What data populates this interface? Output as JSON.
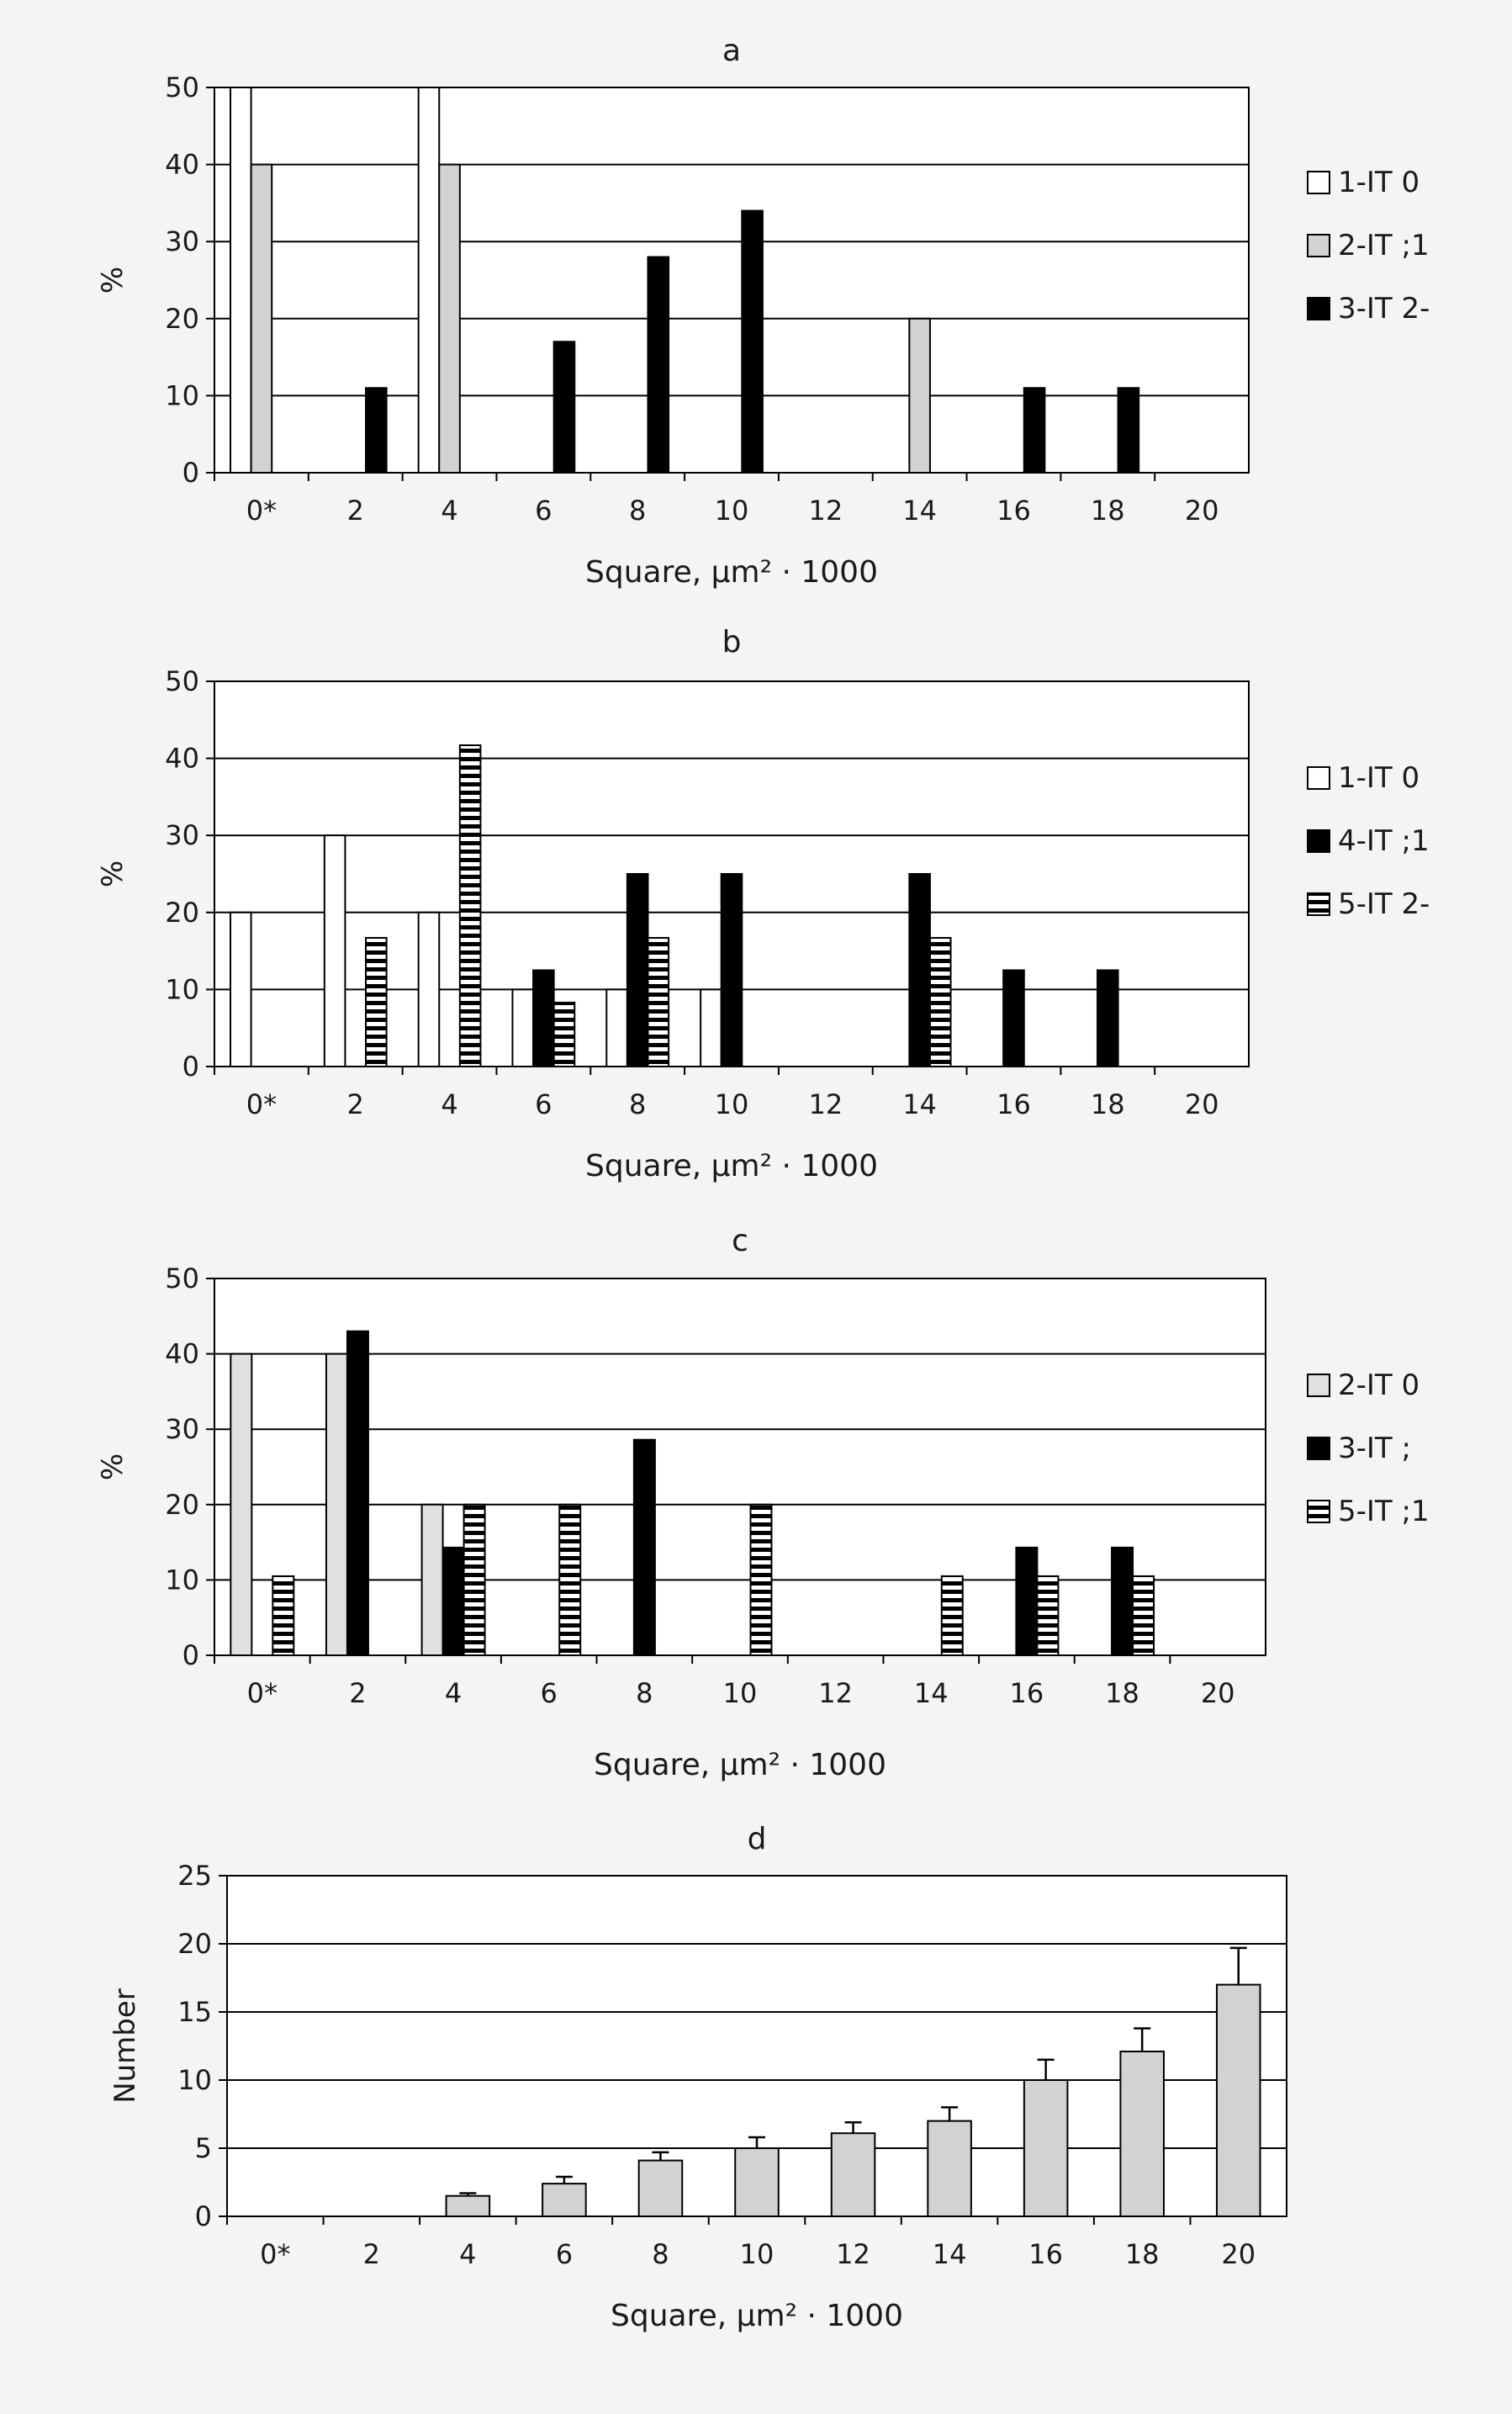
{
  "chart_data": [
    {
      "panel": "a",
      "type": "bar",
      "title": "a",
      "xlabel": "Square, µm² · 1000",
      "ylabel": "%",
      "ylim": [
        0,
        50
      ],
      "yticks": [
        0,
        10,
        20,
        30,
        40,
        50
      ],
      "categories": [
        "0*",
        "2",
        "4",
        "6",
        "8",
        "10",
        "12",
        "14",
        "16",
        "18",
        "20"
      ],
      "series": [
        {
          "name": "1-IT 0",
          "style": "white",
          "values": [
            50,
            0,
            50,
            0,
            0,
            0,
            0,
            0,
            0,
            0,
            0
          ]
        },
        {
          "name": "2-IT ;1",
          "style": "gray",
          "values": [
            40,
            0,
            40,
            0,
            0,
            0,
            0,
            20,
            0,
            0,
            0
          ]
        },
        {
          "name": "3-IT 2-",
          "style": "black",
          "values": [
            0,
            11,
            0,
            17,
            28,
            34,
            0,
            0,
            11,
            11,
            0
          ]
        }
      ],
      "legend_position": "right",
      "grid": true
    },
    {
      "panel": "b",
      "type": "bar",
      "title": "b",
      "xlabel": "Square, µm² · 1000",
      "ylabel": "%",
      "ylim": [
        0,
        50
      ],
      "yticks": [
        0,
        10,
        20,
        30,
        40,
        50
      ],
      "categories": [
        "0*",
        "2",
        "4",
        "6",
        "8",
        "10",
        "12",
        "14",
        "16",
        "18",
        "20"
      ],
      "series": [
        {
          "name": "1-IT 0",
          "style": "white",
          "values": [
            20,
            30,
            20,
            10,
            10,
            10,
            0,
            0,
            0,
            0,
            0
          ]
        },
        {
          "name": "4-IT ;1",
          "style": "black",
          "values": [
            0,
            0,
            0,
            12.5,
            25,
            25,
            0,
            25,
            12.5,
            12.5,
            0
          ]
        },
        {
          "name": "5-IT 2-",
          "style": "striped",
          "values": [
            0,
            16.7,
            41.7,
            8.3,
            16.7,
            0,
            0,
            16.7,
            0,
            0,
            0
          ]
        }
      ],
      "legend_position": "right",
      "grid": true
    },
    {
      "panel": "c",
      "type": "bar",
      "title": "c",
      "xlabel": "Square, µm² · 1000",
      "ylabel": "%",
      "ylim": [
        0,
        50
      ],
      "yticks": [
        0,
        10,
        20,
        30,
        40,
        50
      ],
      "categories": [
        "0*",
        "2",
        "4",
        "6",
        "8",
        "10",
        "12",
        "14",
        "16",
        "18",
        "20"
      ],
      "series": [
        {
          "name": "2-IT 0",
          "style": "lightgray",
          "values": [
            40,
            40,
            20,
            0,
            0,
            0,
            0,
            0,
            0,
            0,
            0
          ]
        },
        {
          "name": "3-IT ;",
          "style": "black",
          "values": [
            0,
            43,
            14.3,
            0,
            28.6,
            0,
            0,
            0,
            14.3,
            14.3,
            0
          ]
        },
        {
          "name": "5-IT ;1",
          "style": "striped",
          "values": [
            10.5,
            0,
            20,
            20,
            0,
            20,
            0,
            10.5,
            10.5,
            10.5,
            0
          ]
        }
      ],
      "legend_position": "right",
      "grid": true
    },
    {
      "panel": "d",
      "type": "bar",
      "title": "d",
      "xlabel": "Square, µm² · 1000",
      "ylabel": "Number",
      "ylim": [
        0,
        25
      ],
      "yticks": [
        0,
        5,
        10,
        15,
        20,
        25
      ],
      "categories": [
        "0*",
        "2",
        "4",
        "6",
        "8",
        "10",
        "12",
        "14",
        "16",
        "18",
        "20"
      ],
      "series": [
        {
          "style": "gray",
          "values": [
            0,
            0,
            1.5,
            2.4,
            4.1,
            5.0,
            6.1,
            7.0,
            10.0,
            12.1,
            17.0
          ],
          "errors": [
            0,
            0,
            0.2,
            0.5,
            0.6,
            0.8,
            0.8,
            1.0,
            1.5,
            1.7,
            2.7
          ]
        }
      ],
      "grid": true
    }
  ],
  "colors": {
    "white": "#ffffff",
    "gray": "#d2d2d2",
    "lightgray": "#e0e0e0",
    "black": "#000000",
    "grid": "#000000",
    "frame_bg": "#f4f4f4"
  }
}
